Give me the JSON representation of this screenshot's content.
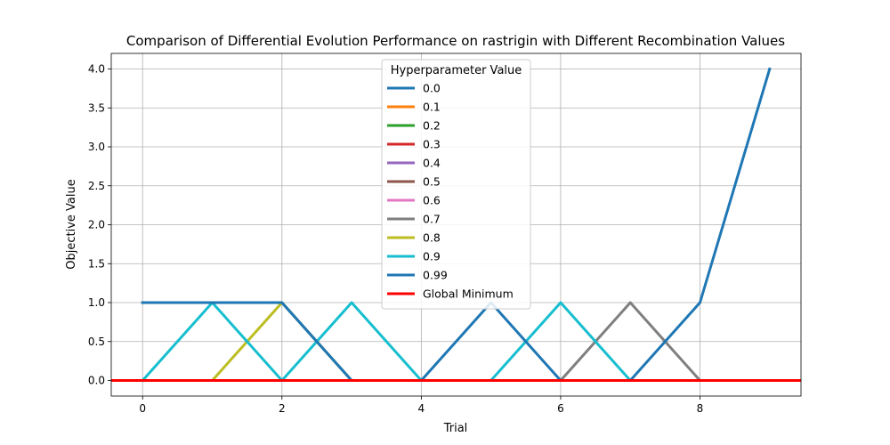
{
  "chart_data": {
    "type": "line",
    "title": "Comparison of Differential Evolution Performance on rastrigin with Different Recombination Values",
    "xlabel": "Trial",
    "ylabel": "Objective Value",
    "xlim": [
      -0.45,
      9.45
    ],
    "ylim": [
      -0.2,
      4.2
    ],
    "x_ticks": [
      0,
      2,
      4,
      6,
      8
    ],
    "y_ticks": [
      0.0,
      0.5,
      1.0,
      1.5,
      2.0,
      2.5,
      3.0,
      3.5,
      4.0
    ],
    "x_tick_labels": [
      "0",
      "2",
      "4",
      "6",
      "8"
    ],
    "y_tick_labels": [
      "0.0",
      "0.5",
      "1.0",
      "1.5",
      "2.0",
      "2.5",
      "3.0",
      "3.5",
      "4.0"
    ],
    "grid": true,
    "legend_title": "Hyperparameter Value",
    "legend_position": "top-center",
    "x": [
      0,
      1,
      2,
      3,
      4,
      5,
      6,
      7,
      8,
      9
    ],
    "series": [
      {
        "name": "0.0",
        "color": "#1f77b4",
        "values": [
          1,
          1,
          1,
          0,
          0,
          0,
          0,
          0,
          0,
          0
        ]
      },
      {
        "name": "0.1",
        "color": "#ff7f0e",
        "values": [
          0,
          0,
          0,
          0,
          0,
          0,
          0,
          0,
          0,
          0
        ]
      },
      {
        "name": "0.2",
        "color": "#2ca02c",
        "values": [
          0,
          0,
          0,
          0,
          0,
          0,
          0,
          0,
          0,
          0
        ]
      },
      {
        "name": "0.3",
        "color": "#d62728",
        "values": [
          0,
          0,
          0,
          0,
          0,
          0,
          0,
          0,
          0,
          0
        ]
      },
      {
        "name": "0.4",
        "color": "#9467bd",
        "values": [
          0,
          0,
          0,
          0,
          0,
          0,
          0,
          0,
          0,
          0
        ]
      },
      {
        "name": "0.5",
        "color": "#8c564b",
        "values": [
          0,
          0,
          0,
          0,
          0,
          0,
          0,
          0,
          0,
          0
        ]
      },
      {
        "name": "0.6",
        "color": "#e377c2",
        "values": [
          0,
          0,
          0,
          0,
          0,
          0,
          0,
          0,
          0,
          0
        ]
      },
      {
        "name": "0.7",
        "color": "#7f7f7f",
        "values": [
          0,
          0,
          0,
          0,
          0,
          0,
          0,
          1,
          0,
          0
        ]
      },
      {
        "name": "0.8",
        "color": "#bcbd22",
        "values": [
          0,
          0,
          1,
          0,
          0,
          0,
          0,
          0,
          0,
          0
        ]
      },
      {
        "name": "0.9",
        "color": "#17becf",
        "values": [
          0,
          1,
          0,
          1,
          0,
          0,
          1,
          0,
          0,
          0
        ]
      },
      {
        "name": "0.99",
        "color": "#1f77b4",
        "values": [
          1,
          1,
          1,
          0,
          0,
          1,
          0,
          0,
          1,
          4
        ]
      }
    ],
    "reference_line": {
      "name": "Global Minimum",
      "color": "#ff0000",
      "value": 0
    }
  }
}
